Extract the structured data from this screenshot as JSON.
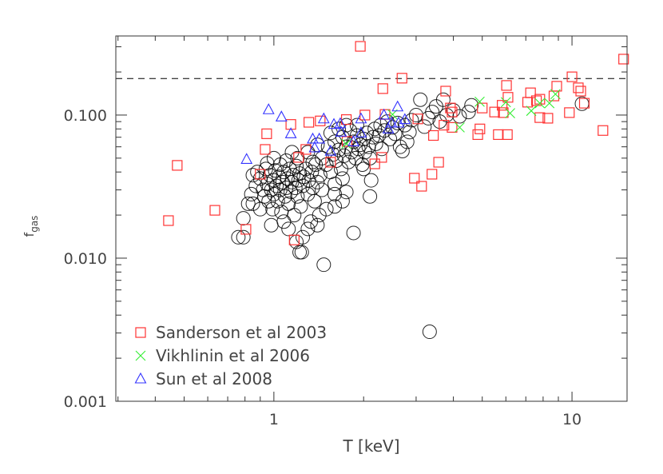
{
  "chart_data": {
    "type": "scatter",
    "title": "",
    "xlabel": "T [keV]",
    "ylabel": {
      "main": "f",
      "sub": "gas"
    },
    "xscale": "log",
    "yscale": "log",
    "xlim": [
      0.295,
      15.3
    ],
    "ylim": [
      0.001,
      0.357
    ],
    "x_ticks": [
      {
        "value": 1,
        "label": "1"
      },
      {
        "value": 10,
        "label": "10"
      }
    ],
    "y_ticks": [
      {
        "value": 0.001,
        "label": "0.001"
      },
      {
        "value": 0.01,
        "label": "0.010"
      },
      {
        "value": 0.1,
        "label": "0.100"
      }
    ],
    "grid": false,
    "legend_placement": "bottom-left",
    "reference_line": {
      "y": 0.18,
      "style": "dashed",
      "color": "#000000"
    },
    "series": [
      {
        "name": "",
        "marker": "circle",
        "color": "#000000",
        "points": [
          [
            0.9,
            0.036
          ],
          [
            0.92,
            0.03
          ],
          [
            0.93,
            0.027
          ],
          [
            0.94,
            0.042
          ],
          [
            0.95,
            0.033
          ],
          [
            0.96,
            0.025
          ],
          [
            0.97,
            0.038
          ],
          [
            0.98,
            0.03
          ],
          [
            0.99,
            0.022
          ],
          [
            1.0,
            0.035
          ],
          [
            1.0,
            0.028
          ],
          [
            1.01,
            0.041
          ],
          [
            1.02,
            0.032
          ],
          [
            1.03,
            0.025
          ],
          [
            1.04,
            0.037
          ],
          [
            1.05,
            0.03
          ],
          [
            1.06,
            0.021
          ],
          [
            1.07,
            0.034
          ],
          [
            1.08,
            0.04
          ],
          [
            1.09,
            0.027
          ],
          [
            1.1,
            0.031
          ],
          [
            1.11,
            0.036
          ],
          [
            1.12,
            0.024
          ],
          [
            1.13,
            0.042
          ],
          [
            1.14,
            0.029
          ],
          [
            1.15,
            0.034
          ],
          [
            1.16,
            0.038
          ],
          [
            1.17,
            0.02
          ],
          [
            1.18,
            0.031
          ],
          [
            1.19,
            0.044
          ],
          [
            1.2,
            0.027
          ],
          [
            1.21,
            0.035
          ],
          [
            1.22,
            0.039
          ],
          [
            1.23,
            0.023
          ],
          [
            1.25,
            0.032
          ],
          [
            1.26,
            0.037
          ],
          [
            1.28,
            0.042
          ],
          [
            1.3,
            0.028
          ],
          [
            1.31,
            0.035
          ],
          [
            1.33,
            0.018
          ],
          [
            1.34,
            0.04
          ],
          [
            1.35,
            0.031
          ],
          [
            1.37,
            0.025
          ],
          [
            1.38,
            0.045
          ],
          [
            1.4,
            0.034
          ],
          [
            1.42,
            0.02
          ],
          [
            1.43,
            0.038
          ],
          [
            1.45,
            0.03
          ],
          [
            0.88,
            0.04
          ],
          [
            0.87,
            0.032
          ],
          [
            0.85,
            0.038
          ],
          [
            0.84,
            0.028
          ],
          [
            0.95,
            0.046
          ],
          [
            1.0,
            0.05
          ],
          [
            1.05,
            0.045
          ],
          [
            1.1,
            0.048
          ],
          [
            1.2,
            0.05
          ],
          [
            1.15,
            0.055
          ],
          [
            0.82,
            0.024
          ],
          [
            0.9,
            0.022
          ],
          [
            0.98,
            0.017
          ],
          [
            1.08,
            0.018
          ],
          [
            1.12,
            0.016
          ],
          [
            1.3,
            0.016
          ],
          [
            1.4,
            0.017
          ],
          [
            1.25,
            0.014
          ],
          [
            1.19,
            0.013
          ],
          [
            1.22,
            0.011
          ],
          [
            1.24,
            0.011
          ],
          [
            1.47,
            0.009
          ],
          [
            0.76,
            0.014
          ],
          [
            0.79,
            0.014
          ],
          [
            0.79,
            0.019
          ],
          [
            0.85,
            0.024
          ],
          [
            1.85,
            0.015
          ],
          [
            1.6,
            0.023
          ],
          [
            1.7,
            0.025
          ],
          [
            1.75,
            0.029
          ],
          [
            2.1,
            0.027
          ],
          [
            2.12,
            0.035
          ],
          [
            1.6,
            0.028
          ],
          [
            1.5,
            0.022
          ],
          [
            1.45,
            0.05
          ],
          [
            1.5,
            0.045
          ],
          [
            1.52,
            0.06
          ],
          [
            1.55,
            0.04
          ],
          [
            1.58,
            0.053
          ],
          [
            1.6,
            0.065
          ],
          [
            1.62,
            0.048
          ],
          [
            1.65,
            0.057
          ],
          [
            1.68,
            0.042
          ],
          [
            1.7,
            0.07
          ],
          [
            1.72,
            0.052
          ],
          [
            1.75,
            0.06
          ],
          [
            1.78,
            0.047
          ],
          [
            1.8,
            0.078
          ],
          [
            1.82,
            0.055
          ],
          [
            1.85,
            0.065
          ],
          [
            1.88,
            0.05
          ],
          [
            1.9,
            0.072
          ],
          [
            1.92,
            0.058
          ],
          [
            1.95,
            0.062
          ],
          [
            1.98,
            0.045
          ],
          [
            2.0,
            0.068
          ],
          [
            2.02,
            0.055
          ],
          [
            2.05,
            0.075
          ],
          [
            2.08,
            0.06
          ],
          [
            2.1,
            0.05
          ],
          [
            2.15,
            0.07
          ],
          [
            2.18,
            0.08
          ],
          [
            2.2,
            0.063
          ],
          [
            2.25,
            0.072
          ],
          [
            2.28,
            0.085
          ],
          [
            2.3,
            0.058
          ],
          [
            2.35,
            0.078
          ],
          [
            2.4,
            0.09
          ],
          [
            2.45,
            0.068
          ],
          [
            2.5,
            0.082
          ],
          [
            2.55,
            0.074
          ],
          [
            2.6,
            0.088
          ],
          [
            2.65,
            0.06
          ],
          [
            2.7,
            0.056
          ],
          [
            2.75,
            0.085
          ],
          [
            2.8,
            0.065
          ],
          [
            1.3,
            0.055
          ],
          [
            1.35,
            0.047
          ],
          [
            1.4,
            0.062
          ],
          [
            1.55,
            0.075
          ],
          [
            1.65,
            0.08
          ],
          [
            1.75,
            0.085
          ],
          [
            1.9,
            0.085
          ],
          [
            2.0,
            0.042
          ],
          [
            1.7,
            0.036
          ],
          [
            1.6,
            0.033
          ],
          [
            2.9,
            0.092
          ],
          [
            3.0,
            0.1
          ],
          [
            3.1,
            0.128
          ],
          [
            3.3,
            0.095
          ],
          [
            3.4,
            0.105
          ],
          [
            3.5,
            0.115
          ],
          [
            3.6,
            0.09
          ],
          [
            3.7,
            0.128
          ],
          [
            3.8,
            0.1
          ],
          [
            4.0,
            0.108
          ],
          [
            4.2,
            0.098
          ],
          [
            4.5,
            0.105
          ],
          [
            4.6,
            0.117
          ],
          [
            2.85,
            0.076
          ],
          [
            3.2,
            0.083
          ],
          [
            10.8,
            0.12
          ],
          [
            3.33,
            0.00306
          ]
        ]
      },
      {
        "name": "Sanderson et al 2003",
        "marker": "square",
        "color": "#ff3333",
        "points": [
          [
            1.95,
            0.302
          ],
          [
            14.9,
            0.246
          ],
          [
            2.69,
            0.181
          ],
          [
            10.0,
            0.185
          ],
          [
            2.32,
            0.153
          ],
          [
            3.77,
            0.147
          ],
          [
            6.03,
            0.161
          ],
          [
            8.89,
            0.159
          ],
          [
            10.5,
            0.155
          ],
          [
            10.7,
            0.147
          ],
          [
            7.26,
            0.143
          ],
          [
            8.7,
            0.136
          ],
          [
            7.1,
            0.123
          ],
          [
            7.6,
            0.126
          ],
          [
            7.8,
            0.129
          ],
          [
            11.0,
            0.121
          ],
          [
            12.7,
            0.078
          ],
          [
            9.8,
            0.104
          ],
          [
            8.3,
            0.095
          ],
          [
            7.8,
            0.096
          ],
          [
            5.0,
            0.112
          ],
          [
            5.83,
            0.117
          ],
          [
            6.1,
            0.133
          ],
          [
            5.5,
            0.105
          ],
          [
            5.88,
            0.104
          ],
          [
            3.91,
            0.112
          ],
          [
            3.96,
            0.105
          ],
          [
            4.91,
            0.08
          ],
          [
            2.36,
            0.101
          ],
          [
            3.04,
            0.094
          ],
          [
            3.43,
            0.072
          ],
          [
            3.72,
            0.085
          ],
          [
            3.96,
            0.082
          ],
          [
            4.83,
            0.073
          ],
          [
            5.66,
            0.073
          ],
          [
            6.07,
            0.073
          ],
          [
            1.14,
            0.086
          ],
          [
            0.946,
            0.074
          ],
          [
            0.935,
            0.0575
          ],
          [
            1.31,
            0.089
          ],
          [
            1.43,
            0.091
          ],
          [
            0.9,
            0.0386
          ],
          [
            1.17,
            0.0134
          ],
          [
            1.21,
            0.0506
          ],
          [
            1.28,
            0.0575
          ],
          [
            1.76,
            0.0654
          ],
          [
            1.55,
            0.0468
          ],
          [
            2.3,
            0.0506
          ],
          [
            2.18,
            0.0456
          ],
          [
            3.57,
            0.0468
          ],
          [
            3.39,
            0.0386
          ],
          [
            2.96,
            0.0362
          ],
          [
            3.13,
            0.0318
          ],
          [
            2.02,
            0.1
          ],
          [
            1.75,
            0.093
          ],
          [
            0.474,
            0.0445
          ],
          [
            0.443,
            0.0183
          ],
          [
            0.634,
            0.0216
          ],
          [
            0.806,
            0.0159
          ]
        ]
      },
      {
        "name": "Vikhlinin et al 2006",
        "marker": "x",
        "color": "#33ee33",
        "points": [
          [
            4.9,
            0.124
          ],
          [
            6.0,
            0.123
          ],
          [
            6.2,
            0.103
          ],
          [
            4.2,
            0.082
          ],
          [
            7.3,
            0.107
          ],
          [
            7.8,
            0.121
          ],
          [
            8.4,
            0.121
          ],
          [
            8.8,
            0.14
          ],
          [
            2.5,
            0.101
          ],
          [
            1.75,
            0.063
          ]
        ]
      },
      {
        "name": "Sun et al 2008",
        "marker": "triangle",
        "color": "#3333ff",
        "points": [
          [
            0.96,
            0.109
          ],
          [
            1.06,
            0.097
          ],
          [
            1.14,
            0.074
          ],
          [
            0.81,
            0.049
          ],
          [
            1.47,
            0.094
          ],
          [
            1.35,
            0.068
          ],
          [
            1.42,
            0.068
          ],
          [
            1.37,
            0.059
          ],
          [
            1.55,
            0.056
          ],
          [
            1.59,
            0.086
          ],
          [
            1.67,
            0.087
          ],
          [
            1.68,
            0.076
          ],
          [
            1.96,
            0.094
          ],
          [
            1.96,
            0.075
          ],
          [
            1.85,
            0.065
          ],
          [
            2.34,
            0.1
          ],
          [
            2.6,
            0.114
          ],
          [
            2.48,
            0.088
          ],
          [
            2.62,
            0.088
          ],
          [
            2.42,
            0.08
          ],
          [
            2.75,
            0.093
          ]
        ]
      }
    ]
  }
}
